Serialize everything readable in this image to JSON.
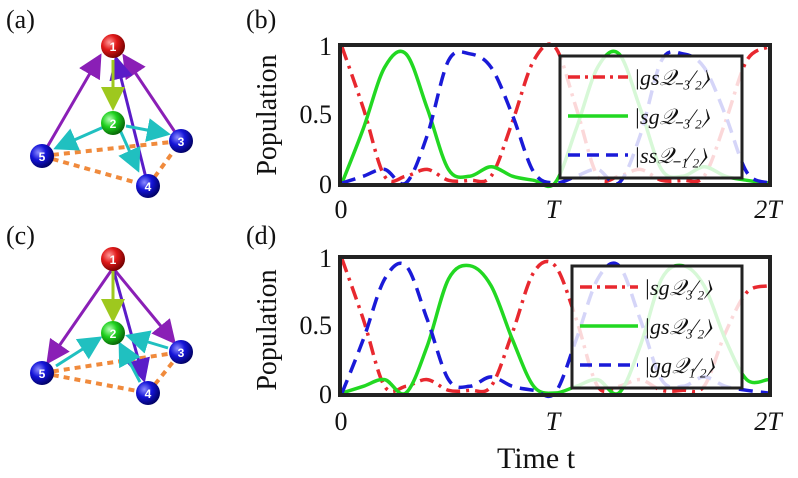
{
  "panels": {
    "a": "(a)",
    "b": "(b)",
    "c": "(c)",
    "d": "(d)"
  },
  "graph_nodes": [
    "1",
    "2",
    "3",
    "4",
    "5"
  ],
  "shared_xlabel": "Time t",
  "colors": {
    "red": "#e8282f",
    "green": "#22d822",
    "blue": "#1a1ad8",
    "dotted": "#f08a3c",
    "frame": "#222222"
  },
  "chart_data": [
    {
      "type": "line",
      "panel": "(b)",
      "ylabel": "Population",
      "ylim": [
        0,
        1
      ],
      "xlim": [
        0,
        2
      ],
      "x_ticks": [
        "0",
        "T",
        "2T"
      ],
      "y_ticks": [
        "0",
        "0.5",
        "1"
      ],
      "legend_position": "top-right",
      "x": [
        0,
        0.1,
        0.2,
        0.3,
        0.4,
        0.5,
        0.6,
        0.7,
        0.8,
        0.9,
        1.0,
        1.1,
        1.2,
        1.3,
        1.4,
        1.5,
        1.6,
        1.7,
        1.8,
        1.9,
        2.0
      ],
      "series": [
        {
          "name": "|gsQ_{-3/2}⟩",
          "legend": "|gs𝒬₋₃⁄₂⟩",
          "style": "dashdot",
          "color": "#e8282f",
          "values": [
            1.0,
            0.55,
            0.05,
            0.05,
            0.1,
            0.02,
            0.02,
            0.05,
            0.45,
            0.9,
            1.0,
            0.55,
            0.05,
            0.05,
            0.1,
            0.02,
            0.02,
            0.05,
            0.45,
            0.9,
            1.0
          ]
        },
        {
          "name": "|sgQ_{-3/2}⟩",
          "legend": "|sg𝒬₋₃⁄₂⟩",
          "style": "solid",
          "color": "#22d822",
          "values": [
            0.0,
            0.4,
            0.85,
            0.95,
            0.55,
            0.1,
            0.05,
            0.12,
            0.05,
            0.02,
            0.0,
            0.4,
            0.85,
            0.95,
            0.55,
            0.1,
            0.05,
            0.12,
            0.05,
            0.02,
            0.0
          ]
        },
        {
          "name": "|ssQ_{-1/2}⟩",
          "legend": "|ss𝒬₋₁⁄₂⟩",
          "style": "dashed",
          "color": "#1a1ad8",
          "values": [
            0.0,
            0.05,
            0.1,
            0.0,
            0.35,
            0.9,
            0.95,
            0.85,
            0.5,
            0.08,
            0.0,
            0.05,
            0.1,
            0.0,
            0.35,
            0.9,
            0.95,
            0.85,
            0.5,
            0.08,
            0.0
          ]
        }
      ]
    },
    {
      "type": "line",
      "panel": "(d)",
      "ylabel": "Population",
      "ylim": [
        0,
        1
      ],
      "xlim": [
        0,
        2
      ],
      "x_ticks": [
        "0",
        "T",
        "2T"
      ],
      "y_ticks": [
        "0",
        "0.5",
        "1"
      ],
      "legend_position": "top-right",
      "x": [
        0,
        0.1,
        0.2,
        0.3,
        0.4,
        0.5,
        0.6,
        0.7,
        0.8,
        0.9,
        1.0,
        1.1,
        1.2,
        1.3,
        1.4,
        1.5,
        1.6,
        1.7,
        1.8,
        1.9,
        2.0
      ],
      "series": [
        {
          "name": "|sgQ_{3/2}⟩",
          "legend": "|sg𝒬₃⁄₂⟩",
          "style": "dashdot",
          "color": "#e8282f",
          "values": [
            1.0,
            0.55,
            0.05,
            0.05,
            0.1,
            0.02,
            0.02,
            0.05,
            0.45,
            0.9,
            0.95,
            0.55,
            0.05,
            0.05,
            0.1,
            0.02,
            0.02,
            0.05,
            0.45,
            0.75,
            0.8
          ]
        },
        {
          "name": "|gsQ_{3/2}⟩",
          "legend": "|gs𝒬₃⁄₂⟩",
          "style": "solid",
          "color": "#22d822",
          "values": [
            0.0,
            0.05,
            0.1,
            0.0,
            0.35,
            0.85,
            0.95,
            0.8,
            0.4,
            0.05,
            0.0,
            0.05,
            0.1,
            0.0,
            0.35,
            0.85,
            0.95,
            0.8,
            0.4,
            0.1,
            0.1
          ]
        },
        {
          "name": "|ggQ_{1/2}⟩",
          "legend": "|gg𝒬₁⁄₂⟩",
          "style": "dashed",
          "color": "#1a1ad8",
          "values": [
            0.0,
            0.4,
            0.85,
            0.95,
            0.55,
            0.1,
            0.05,
            0.12,
            0.05,
            0.02,
            0.0,
            0.4,
            0.85,
            0.95,
            0.55,
            0.1,
            0.05,
            0.12,
            0.05,
            0.02,
            0.0
          ]
        }
      ]
    }
  ]
}
